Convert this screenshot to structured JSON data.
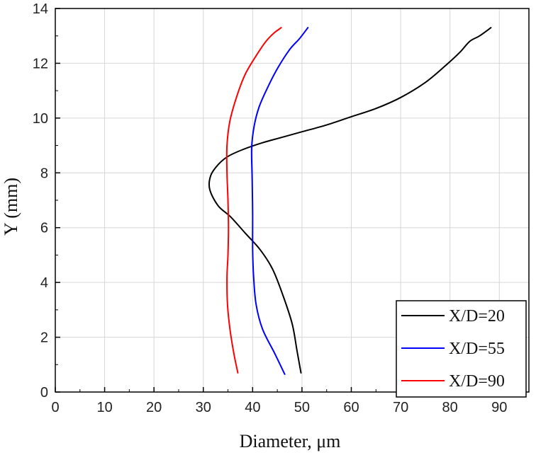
{
  "chart_data": {
    "type": "line",
    "title": "",
    "xlabel": "Diameter, μm",
    "ylabel": "Y (mm)",
    "xlim": [
      0,
      96
    ],
    "ylim": [
      0,
      14
    ],
    "xticks": [
      0,
      10,
      20,
      30,
      40,
      50,
      60,
      70,
      80,
      90
    ],
    "yticks": [
      0,
      2,
      4,
      6,
      8,
      10,
      12,
      14
    ],
    "grid": true,
    "legend_position": "bottom-right",
    "series": [
      {
        "name": "X/D=20",
        "color": "#000000",
        "points": [
          [
            49.8,
            0.7
          ],
          [
            49,
            1.5
          ],
          [
            48,
            2.5
          ],
          [
            46,
            3.6
          ],
          [
            44,
            4.5
          ],
          [
            41.5,
            5.2
          ],
          [
            38.5,
            5.8
          ],
          [
            35.5,
            6.4
          ],
          [
            33,
            6.8
          ],
          [
            31.3,
            7.4
          ],
          [
            31.5,
            7.9
          ],
          [
            33,
            8.3
          ],
          [
            35,
            8.6
          ],
          [
            38,
            8.85
          ],
          [
            42,
            9.1
          ],
          [
            46,
            9.3
          ],
          [
            50,
            9.5
          ],
          [
            55,
            9.75
          ],
          [
            60,
            10.05
          ],
          [
            65,
            10.35
          ],
          [
            70,
            10.75
          ],
          [
            75,
            11.3
          ],
          [
            79,
            11.9
          ],
          [
            82,
            12.4
          ],
          [
            84,
            12.8
          ],
          [
            86,
            13
          ],
          [
            88.3,
            13.3
          ]
        ]
      },
      {
        "name": "X/D=55",
        "color": "#0000ff",
        "points": [
          [
            46.5,
            0.65
          ],
          [
            44.5,
            1.4
          ],
          [
            42,
            2.3
          ],
          [
            40.7,
            3.2
          ],
          [
            40.2,
            4.2
          ],
          [
            40,
            5.2
          ],
          [
            40,
            6.5
          ],
          [
            39.9,
            7.8
          ],
          [
            39.8,
            8.9
          ],
          [
            40.3,
            9.7
          ],
          [
            41.3,
            10.4
          ],
          [
            43,
            11.1
          ],
          [
            45,
            11.8
          ],
          [
            47.5,
            12.5
          ],
          [
            49.5,
            12.9
          ],
          [
            51.2,
            13.3
          ]
        ]
      },
      {
        "name": "X/D=90",
        "color": "#ff0000",
        "points": [
          [
            37,
            0.7
          ],
          [
            36.2,
            1.4
          ],
          [
            35.4,
            2.3
          ],
          [
            34.9,
            3.2
          ],
          [
            34.8,
            4.2
          ],
          [
            35,
            5
          ],
          [
            35.1,
            6
          ],
          [
            35,
            7
          ],
          [
            34.8,
            8
          ],
          [
            34.8,
            9
          ],
          [
            35.4,
            9.9
          ],
          [
            36.8,
            10.8
          ],
          [
            38.5,
            11.6
          ],
          [
            40.8,
            12.3
          ],
          [
            42.7,
            12.8
          ],
          [
            44.3,
            13.1
          ],
          [
            45.8,
            13.3
          ]
        ]
      }
    ]
  }
}
